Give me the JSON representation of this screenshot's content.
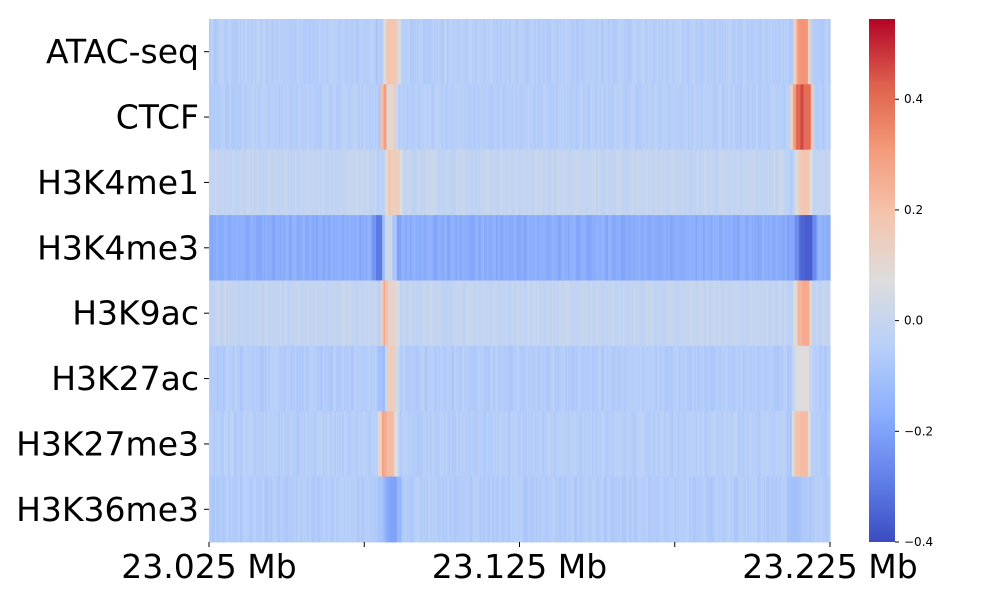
{
  "chart_data": {
    "type": "heatmap",
    "title": "",
    "xlabel": "",
    "ylabel": "",
    "rows": [
      "ATAC-seq",
      "CTCF",
      "H3K4me1",
      "H3K4me3",
      "H3K9ac",
      "H3K27ac",
      "H3K27me3",
      "H3K36me3"
    ],
    "x_range_mb": [
      23.025,
      23.225
    ],
    "x_ticks": [
      {
        "value": 23.025,
        "label": "23.025 Mb"
      },
      {
        "value": 23.075,
        "label": ""
      },
      {
        "value": 23.125,
        "label": "23.125 Mb"
      },
      {
        "value": 23.175,
        "label": ""
      },
      {
        "value": 23.225,
        "label": "23.225 Mb"
      }
    ],
    "row_baselines": [
      -0.05,
      -0.05,
      -0.01,
      -0.17,
      -0.01,
      -0.06,
      -0.05,
      -0.06
    ],
    "peaks": {
      "ATAC-seq": [
        {
          "pos": 23.0835,
          "value": 0.2
        },
        {
          "pos": 23.0845,
          "value": 0.18
        },
        {
          "pos": 23.2155,
          "value": 0.3
        },
        {
          "pos": 23.2165,
          "value": 0.32
        }
      ],
      "CTCF": [
        {
          "pos": 23.0825,
          "value": 0.5
        },
        {
          "pos": 23.0835,
          "value": 0.1
        },
        {
          "pos": 23.2145,
          "value": 0.3
        },
        {
          "pos": 23.2165,
          "value": 0.52
        },
        {
          "pos": 23.2175,
          "value": 0.4
        }
      ],
      "H3K4me1": [
        {
          "pos": 23.084,
          "value": 0.2
        },
        {
          "pos": 23.085,
          "value": 0.15
        },
        {
          "pos": 23.216,
          "value": 0.14
        },
        {
          "pos": 23.217,
          "value": 0.18
        }
      ],
      "H3K4me3": [
        {
          "pos": 23.08,
          "value": -0.3
        },
        {
          "pos": 23.083,
          "value": 0.02
        },
        {
          "pos": 23.216,
          "value": -0.32
        },
        {
          "pos": 23.218,
          "value": -0.36
        }
      ],
      "H3K9ac": [
        {
          "pos": 23.0825,
          "value": 0.28
        },
        {
          "pos": 23.084,
          "value": 0.12
        },
        {
          "pos": 23.2155,
          "value": 0.2
        },
        {
          "pos": 23.217,
          "value": 0.26
        }
      ],
      "H3K27ac": [
        {
          "pos": 23.082,
          "value": -0.12
        },
        {
          "pos": 23.084,
          "value": 0.15
        },
        {
          "pos": 23.215,
          "value": 0.05
        },
        {
          "pos": 23.217,
          "value": 0.08
        }
      ],
      "H3K27me3": [
        {
          "pos": 23.082,
          "value": 0.3
        },
        {
          "pos": 23.0835,
          "value": 0.22
        },
        {
          "pos": 23.215,
          "value": 0.18
        },
        {
          "pos": 23.2165,
          "value": 0.22
        }
      ],
      "H3K36me3": [
        {
          "pos": 23.083,
          "value": -0.16
        },
        {
          "pos": 23.0845,
          "value": -0.2
        },
        {
          "pos": 23.2135,
          "value": -0.1
        }
      ]
    },
    "colorbar": {
      "colormap": "coolwarm",
      "vmin": -0.4,
      "vmax": 0.545,
      "ticks": [
        {
          "value": -0.4,
          "label": "−0.4"
        },
        {
          "value": -0.2,
          "label": "−0.2"
        },
        {
          "value": 0.0,
          "label": "0.0"
        },
        {
          "value": 0.2,
          "label": "0.2"
        },
        {
          "value": 0.4,
          "label": "0.4"
        }
      ]
    },
    "grid": false,
    "legend": "colorbar-right"
  }
}
